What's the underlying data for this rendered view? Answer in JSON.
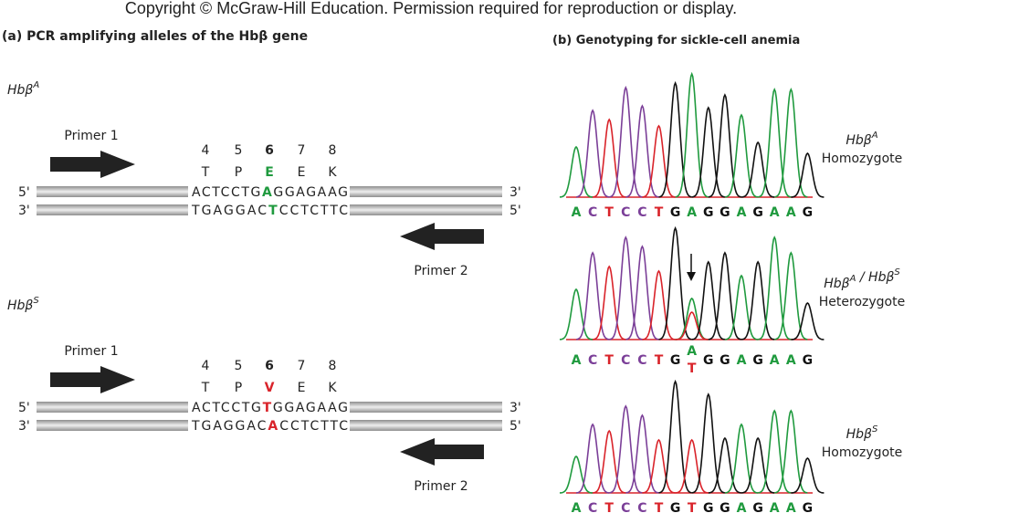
{
  "copyright": "Copyright © McGraw-Hill Education. Permission required for reproduction or display.",
  "panel_a": {
    "title": "(a)  PCR amplifying alleles of the Hbβ gene",
    "alleles": [
      {
        "label": {
          "base": "Hbβ",
          "sup": "A"
        },
        "primer1": "Primer 1",
        "primer2": "Primer 2",
        "positions": [
          "4",
          "5",
          "6",
          "7",
          "8"
        ],
        "amino_acids": [
          "T",
          "P",
          "E",
          "E",
          "K"
        ],
        "highlight_color": "#1f9a3e",
        "top": {
          "left": "5'",
          "seq": [
            "ACTCCTG",
            "A",
            "GGAGAAG"
          ],
          "right": "3'"
        },
        "bottom": {
          "left": "3'",
          "seq": [
            "TGAGGAC",
            "T",
            "CCTCTTC"
          ],
          "right": "5'"
        }
      },
      {
        "label": {
          "base": "Hbβ",
          "sup": "S"
        },
        "primer1": "Primer 1",
        "primer2": "Primer 2",
        "positions": [
          "4",
          "5",
          "6",
          "7",
          "8"
        ],
        "amino_acids": [
          "T",
          "P",
          "V",
          "E",
          "K"
        ],
        "highlight_color": "#d9232a",
        "top": {
          "left": "5'",
          "seq": [
            "ACTCCTG",
            "T",
            "GGAGAAG"
          ],
          "right": "3'"
        },
        "bottom": {
          "left": "3'",
          "seq": [
            "TGAGGAC",
            "A",
            "CCTCTTC"
          ],
          "right": "5'"
        }
      }
    ]
  },
  "panel_b": {
    "title": "(b)  Genotyping for sickle-cell anemia",
    "base_colors": {
      "A": "#1f9a3e",
      "C": "#7b3f98",
      "T": "#d9232a",
      "G": "#111111"
    },
    "traces": [
      {
        "label": [
          {
            "base": "Hbβ",
            "sup": "A"
          }
        ],
        "genotype": "Homozygote",
        "bases": [
          "A",
          "C",
          "T",
          "C",
          "C",
          "T",
          "G",
          "A",
          "G",
          "G",
          "A",
          "G",
          "A",
          "A",
          "G"
        ]
      },
      {
        "label": [
          {
            "base": "Hbβ",
            "sup": "A"
          },
          {
            "base": "Hbβ",
            "sup": "S"
          }
        ],
        "separator": " / ",
        "genotype": "Heterozygote",
        "bases": [
          "A",
          "C",
          "T",
          "C",
          "C",
          "T",
          "G",
          [
            "A",
            "T"
          ],
          "G",
          "G",
          "A",
          "G",
          "A",
          "A",
          "G"
        ]
      },
      {
        "label": [
          {
            "base": "Hbβ",
            "sup": "S"
          }
        ],
        "genotype": "Homozygote",
        "bases": [
          "A",
          "C",
          "T",
          "C",
          "C",
          "T",
          "G",
          "T",
          "G",
          "G",
          "A",
          "G",
          "A",
          "A",
          "G"
        ]
      }
    ]
  }
}
